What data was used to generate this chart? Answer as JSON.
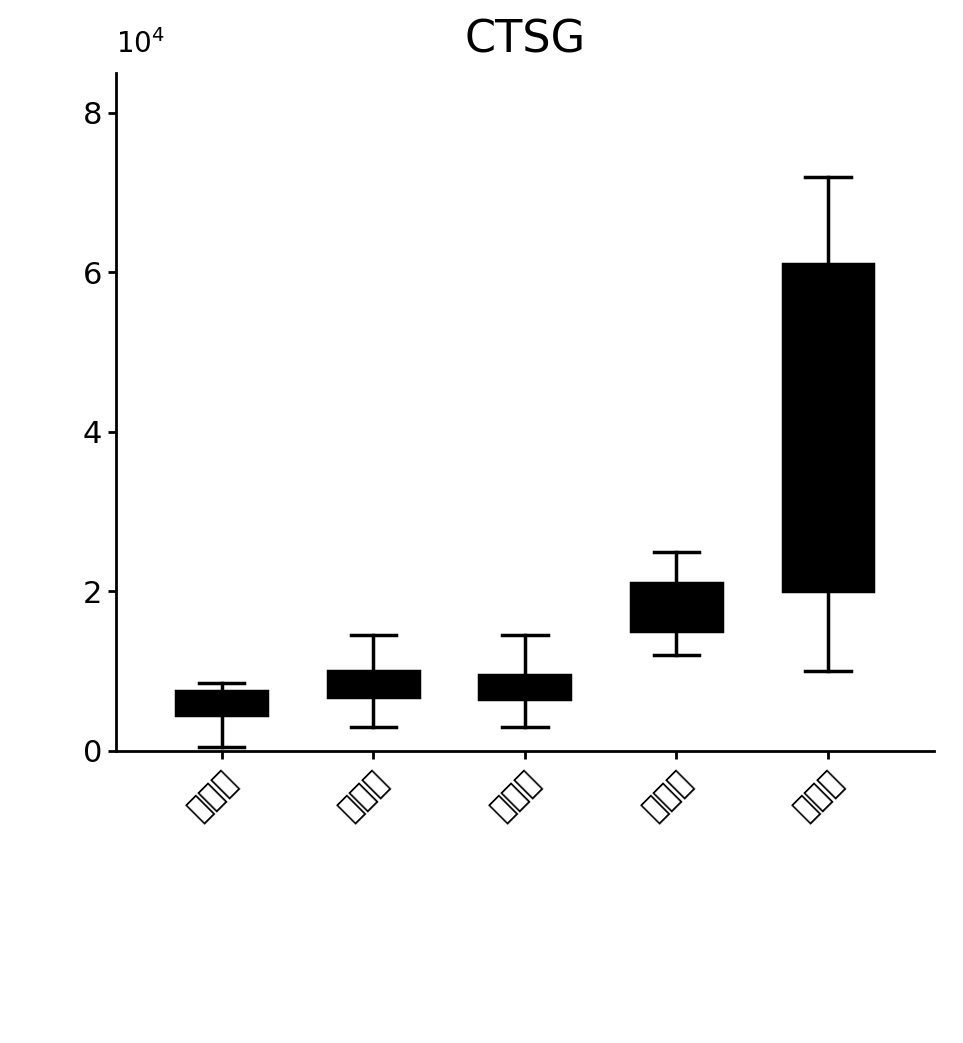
{
  "title": "CTSG",
  "title_fontsize": 32,
  "categories": [
    "正常人",
    "慢乙肝",
    "肝硬化",
    "肝损伤",
    "肝衰竭"
  ],
  "xlabel_fontsize": 22,
  "ylim": [
    0,
    85000
  ],
  "yticks": [
    0,
    20000,
    40000,
    60000,
    80000
  ],
  "ytick_labels": [
    "0",
    "2",
    "4",
    "6",
    "8"
  ],
  "boxes": [
    {
      "whislo": 500,
      "q1": 4500,
      "med": 5800,
      "q3": 7500,
      "whishi": 8500
    },
    {
      "whislo": 3000,
      "q1": 6800,
      "med": 8500,
      "q3": 10000,
      "whishi": 14500
    },
    {
      "whislo": 3000,
      "q1": 6500,
      "med": 8000,
      "q3": 9500,
      "whishi": 14500
    },
    {
      "whislo": 12000,
      "q1": 15000,
      "med": 20000,
      "q3": 21000,
      "whishi": 25000
    },
    {
      "whislo": 10000,
      "q1": 20000,
      "med": 35000,
      "q3": 61000,
      "whishi": 72000
    }
  ],
  "box_color": "#000000",
  "background_color": "#ffffff",
  "linewidth": 2.5,
  "tick_fontsize": 22,
  "exponent_fontsize": 20
}
